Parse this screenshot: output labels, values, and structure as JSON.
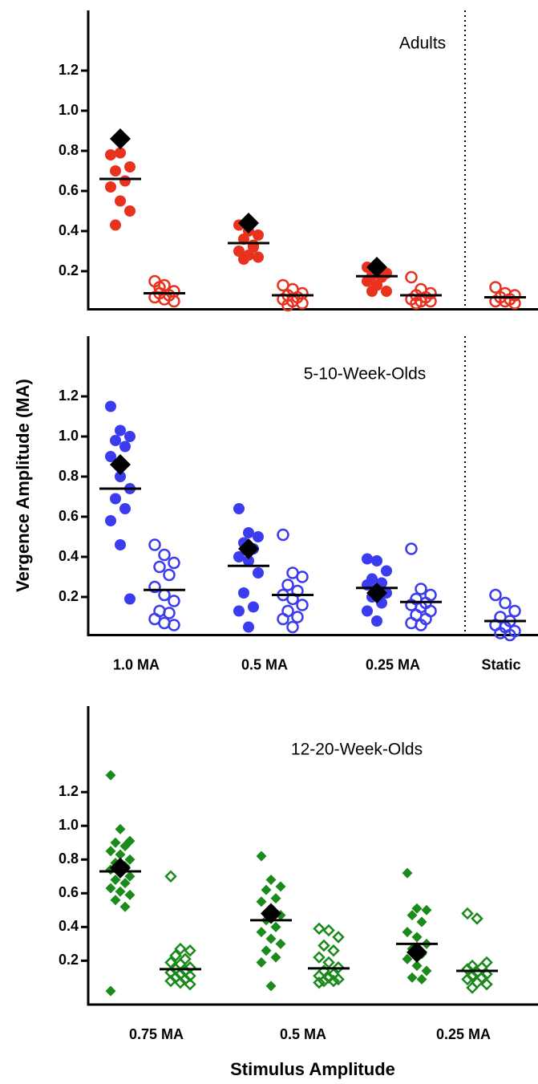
{
  "chart_data": [
    {
      "type": "strip",
      "annotation": "Adults",
      "color": "#e8321e",
      "marker": "circle",
      "ylim": [
        0.01,
        1.5
      ],
      "yticks": [
        0.2,
        0.4,
        0.6,
        0.8,
        {
          "value": 1,
          "label": "1.0"
        },
        1.2
      ],
      "categories": [
        null,
        null,
        null,
        null
      ],
      "groups": [
        {
          "filled": [
            0.78,
            0.79,
            0.72,
            0.7,
            0.65,
            0.62,
            0.55,
            0.5,
            0.43
          ],
          "filled_mean": 0.66,
          "diamond": 0.86,
          "open": [
            0.15,
            0.13,
            0.1,
            0.09,
            0.08,
            0.07,
            0.06,
            0.05,
            0.12
          ],
          "open_mean": 0.09
        },
        {
          "filled": [
            0.43,
            0.4,
            0.38,
            0.36,
            0.33,
            0.3,
            0.28,
            0.27,
            0.26,
            0.32
          ],
          "filled_mean": 0.34,
          "diamond": 0.44,
          "open": [
            0.13,
            0.11,
            0.09,
            0.08,
            0.07,
            0.06,
            0.05,
            0.04,
            0.03
          ],
          "open_mean": 0.08
        },
        {
          "filled": [
            0.22,
            0.21,
            0.19,
            0.18,
            0.17,
            0.15,
            0.13,
            0.1,
            0.1
          ],
          "filled_mean": 0.175,
          "diamond": 0.22,
          "open": [
            0.17,
            0.11,
            0.09,
            0.08,
            0.07,
            0.06,
            0.05,
            0.05,
            0.04
          ],
          "open_mean": 0.08
        },
        {
          "open": [
            0.12,
            0.09,
            0.08,
            0.07,
            0.06,
            0.05,
            0.05,
            0.04
          ],
          "open_mean": 0.07
        }
      ]
    },
    {
      "type": "strip",
      "annotation": "5-10-Week-Olds",
      "color": "#3b3bf0",
      "marker": "circle",
      "y_label": "Vergence Amplitude (MA)",
      "ylim": [
        0.01,
        1.5
      ],
      "yticks": [
        0.2,
        0.4,
        0.6,
        0.8,
        {
          "value": 1,
          "label": "1.0"
        },
        1.2
      ],
      "categories": [
        "1.0 MA",
        "0.5 MA",
        "0.25 MA",
        "Static"
      ],
      "groups": [
        {
          "filled": [
            1.15,
            1.03,
            1.0,
            0.98,
            0.95,
            0.9,
            0.8,
            0.74,
            0.69,
            0.64,
            0.58,
            0.46,
            0.19
          ],
          "filled_mean": 0.74,
          "diamond": 0.86,
          "open": [
            0.46,
            0.41,
            0.37,
            0.35,
            0.31,
            0.25,
            0.21,
            0.18,
            0.13,
            0.12,
            0.09,
            0.07,
            0.06
          ],
          "open_mean": 0.235
        },
        {
          "filled": [
            0.64,
            0.52,
            0.5,
            0.47,
            0.44,
            0.4,
            0.38,
            0.32,
            0.22,
            0.15,
            0.13,
            0.05
          ],
          "filled_mean": 0.355,
          "diamond": 0.44,
          "open": [
            0.51,
            0.32,
            0.3,
            0.26,
            0.23,
            0.21,
            0.19,
            0.16,
            0.13,
            0.1,
            0.09,
            0.05
          ],
          "open_mean": 0.21
        },
        {
          "filled": [
            0.39,
            0.38,
            0.33,
            0.29,
            0.27,
            0.26,
            0.24,
            0.22,
            0.2,
            0.17,
            0.13,
            0.08
          ],
          "filled_mean": 0.245,
          "diamond": 0.22,
          "open": [
            0.44,
            0.24,
            0.21,
            0.19,
            0.17,
            0.16,
            0.15,
            0.13,
            0.11,
            0.09,
            0.07,
            0.06
          ],
          "open_mean": 0.175
        },
        {
          "open": [
            0.21,
            0.17,
            0.13,
            0.1,
            0.08,
            0.06,
            0.05,
            0.03,
            0.02,
            0.01
          ],
          "open_mean": 0.08
        }
      ]
    },
    {
      "type": "strip",
      "annotation": "12-20-Week-Olds",
      "color": "#1a8a1a",
      "marker": "diamond",
      "x_label": "Stimulus Amplitude",
      "ylim": [
        -0.06,
        1.71
      ],
      "yticks": [
        0.2,
        0.4,
        0.6,
        0.8,
        {
          "value": 1,
          "label": "1.0"
        },
        1.2
      ],
      "categories": [
        "0.75 MA",
        "0.5 MA",
        "0.25 MA"
      ],
      "groups": [
        {
          "filled": [
            1.3,
            0.98,
            0.91,
            0.9,
            0.88,
            0.85,
            0.83,
            0.8,
            0.78,
            0.76,
            0.74,
            0.72,
            0.7,
            0.68,
            0.66,
            0.63,
            0.61,
            0.59,
            0.56,
            0.52,
            0.02
          ],
          "filled_mean": 0.73,
          "diamond": 0.75,
          "open": [
            0.7,
            0.27,
            0.26,
            0.23,
            0.21,
            0.19,
            0.18,
            0.16,
            0.15,
            0.14,
            0.13,
            0.12,
            0.11,
            0.1,
            0.09,
            0.08,
            0.07,
            0.06
          ],
          "open_mean": 0.15
        },
        {
          "filled": [
            0.82,
            0.68,
            0.64,
            0.62,
            0.57,
            0.55,
            0.5,
            0.47,
            0.44,
            0.4,
            0.37,
            0.33,
            0.3,
            0.26,
            0.22,
            0.19,
            0.05
          ],
          "filled_mean": 0.44,
          "diamond": 0.48,
          "open": [
            0.39,
            0.38,
            0.34,
            0.29,
            0.26,
            0.22,
            0.19,
            0.16,
            0.14,
            0.12,
            0.11,
            0.1,
            0.09,
            0.08,
            0.08,
            0.07
          ],
          "open_mean": 0.155
        },
        {
          "filled": [
            0.72,
            0.51,
            0.5,
            0.47,
            0.43,
            0.37,
            0.34,
            0.3,
            0.27,
            0.24,
            0.21,
            0.17,
            0.14,
            0.1,
            0.09
          ],
          "filled_mean": 0.3,
          "diamond": 0.25,
          "open": [
            0.48,
            0.45,
            0.19,
            0.17,
            0.16,
            0.15,
            0.13,
            0.12,
            0.11,
            0.1,
            0.09,
            0.07,
            0.06,
            0.04
          ],
          "open_mean": 0.14
        }
      ]
    }
  ]
}
